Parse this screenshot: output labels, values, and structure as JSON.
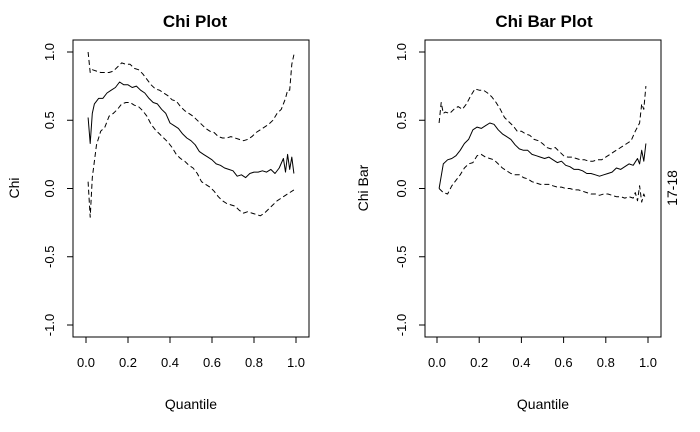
{
  "side_label": "17-18",
  "chart_data": [
    {
      "type": "line",
      "title": "Chi Plot",
      "xlabel": "Quantile",
      "ylabel": "Chi",
      "xlim": [
        0,
        1
      ],
      "ylim": [
        -1,
        1
      ],
      "xticks": [
        "0.0",
        "0.2",
        "0.4",
        "0.6",
        "0.8",
        "1.0"
      ],
      "yticks": [
        "-1.0",
        "-0.5",
        "0.0",
        "0.5",
        "1.0"
      ],
      "series": [
        {
          "style": "solid",
          "x": [
            0.01,
            0.02,
            0.03,
            0.04,
            0.06,
            0.08,
            0.1,
            0.12,
            0.14,
            0.16,
            0.18,
            0.2,
            0.22,
            0.24,
            0.26,
            0.28,
            0.3,
            0.32,
            0.34,
            0.36,
            0.38,
            0.4,
            0.42,
            0.44,
            0.46,
            0.48,
            0.5,
            0.52,
            0.54,
            0.56,
            0.58,
            0.6,
            0.62,
            0.64,
            0.66,
            0.68,
            0.7,
            0.72,
            0.74,
            0.76,
            0.78,
            0.8,
            0.82,
            0.84,
            0.86,
            0.88,
            0.9,
            0.92,
            0.94,
            0.95,
            0.96,
            0.97,
            0.98,
            0.99
          ],
          "y": [
            0.52,
            0.33,
            0.55,
            0.62,
            0.66,
            0.66,
            0.7,
            0.72,
            0.74,
            0.78,
            0.76,
            0.76,
            0.74,
            0.75,
            0.72,
            0.7,
            0.66,
            0.63,
            0.62,
            0.58,
            0.55,
            0.48,
            0.46,
            0.44,
            0.4,
            0.37,
            0.35,
            0.32,
            0.27,
            0.25,
            0.23,
            0.21,
            0.18,
            0.17,
            0.15,
            0.14,
            0.13,
            0.09,
            0.1,
            0.08,
            0.11,
            0.12,
            0.12,
            0.13,
            0.12,
            0.14,
            0.11,
            0.15,
            0.22,
            0.12,
            0.25,
            0.14,
            0.23,
            0.11
          ]
        },
        {
          "style": "dashed",
          "x": [
            0.01,
            0.02,
            0.03,
            0.05,
            0.07,
            0.09,
            0.11,
            0.13,
            0.15,
            0.17,
            0.19,
            0.21,
            0.23,
            0.25,
            0.27,
            0.29,
            0.31,
            0.33,
            0.35,
            0.37,
            0.39,
            0.41,
            0.43,
            0.45,
            0.47,
            0.49,
            0.51,
            0.53,
            0.55,
            0.57,
            0.59,
            0.61,
            0.63,
            0.65,
            0.67,
            0.69,
            0.71,
            0.73,
            0.75,
            0.77,
            0.79,
            0.81,
            0.83,
            0.85,
            0.87,
            0.89,
            0.91,
            0.93,
            0.95,
            0.96,
            0.97,
            0.98,
            0.99
          ],
          "y": [
            1.0,
            0.85,
            0.87,
            0.86,
            0.85,
            0.85,
            0.85,
            0.86,
            0.89,
            0.92,
            0.91,
            0.91,
            0.88,
            0.87,
            0.84,
            0.8,
            0.76,
            0.73,
            0.72,
            0.7,
            0.68,
            0.65,
            0.64,
            0.6,
            0.57,
            0.55,
            0.53,
            0.5,
            0.47,
            0.44,
            0.42,
            0.41,
            0.38,
            0.37,
            0.37,
            0.38,
            0.37,
            0.36,
            0.35,
            0.36,
            0.38,
            0.41,
            0.43,
            0.45,
            0.47,
            0.5,
            0.55,
            0.58,
            0.66,
            0.72,
            0.72,
            0.91,
            0.98
          ]
        },
        {
          "style": "dashed",
          "x": [
            0.01,
            0.02,
            0.03,
            0.05,
            0.07,
            0.09,
            0.11,
            0.13,
            0.15,
            0.17,
            0.19,
            0.21,
            0.23,
            0.25,
            0.27,
            0.29,
            0.31,
            0.33,
            0.35,
            0.37,
            0.39,
            0.41,
            0.43,
            0.45,
            0.47,
            0.49,
            0.51,
            0.53,
            0.55,
            0.57,
            0.59,
            0.61,
            0.63,
            0.65,
            0.67,
            0.69,
            0.71,
            0.73,
            0.75,
            0.77,
            0.79,
            0.81,
            0.83,
            0.85,
            0.87,
            0.89,
            0.91,
            0.93,
            0.95,
            0.97,
            0.99
          ],
          "y": [
            0.05,
            -0.21,
            0.08,
            0.32,
            0.42,
            0.45,
            0.53,
            0.55,
            0.58,
            0.62,
            0.63,
            0.63,
            0.61,
            0.6,
            0.57,
            0.53,
            0.47,
            0.43,
            0.4,
            0.37,
            0.34,
            0.3,
            0.25,
            0.22,
            0.2,
            0.17,
            0.15,
            0.11,
            0.05,
            0.03,
            0.01,
            -0.02,
            -0.06,
            -0.09,
            -0.11,
            -0.12,
            -0.13,
            -0.16,
            -0.18,
            -0.17,
            -0.18,
            -0.19,
            -0.2,
            -0.18,
            -0.15,
            -0.12,
            -0.09,
            -0.07,
            -0.05,
            -0.03,
            -0.01
          ]
        }
      ]
    },
    {
      "type": "line",
      "title": "Chi Bar Plot",
      "xlabel": "Quantile",
      "ylabel": "Chi Bar",
      "xlim": [
        0,
        1
      ],
      "ylim": [
        -1,
        1
      ],
      "xticks": [
        "0.0",
        "0.2",
        "0.4",
        "0.6",
        "0.8",
        "1.0"
      ],
      "yticks": [
        "-1.0",
        "-0.5",
        "0.0",
        "0.5",
        "1.0"
      ],
      "series": [
        {
          "style": "solid",
          "x": [
            0.01,
            0.03,
            0.05,
            0.07,
            0.09,
            0.11,
            0.13,
            0.15,
            0.17,
            0.19,
            0.21,
            0.23,
            0.25,
            0.27,
            0.29,
            0.31,
            0.33,
            0.35,
            0.37,
            0.39,
            0.41,
            0.43,
            0.45,
            0.47,
            0.49,
            0.51,
            0.53,
            0.55,
            0.57,
            0.59,
            0.61,
            0.63,
            0.65,
            0.67,
            0.69,
            0.71,
            0.73,
            0.75,
            0.77,
            0.79,
            0.81,
            0.83,
            0.85,
            0.87,
            0.89,
            0.91,
            0.93,
            0.95,
            0.96,
            0.97,
            0.98,
            0.99
          ],
          "y": [
            0.0,
            0.18,
            0.21,
            0.22,
            0.24,
            0.28,
            0.33,
            0.36,
            0.43,
            0.45,
            0.44,
            0.46,
            0.48,
            0.47,
            0.43,
            0.4,
            0.38,
            0.36,
            0.32,
            0.29,
            0.28,
            0.28,
            0.25,
            0.24,
            0.23,
            0.22,
            0.23,
            0.21,
            0.19,
            0.2,
            0.17,
            0.16,
            0.14,
            0.14,
            0.13,
            0.11,
            0.11,
            0.1,
            0.09,
            0.1,
            0.11,
            0.12,
            0.15,
            0.14,
            0.16,
            0.18,
            0.17,
            0.22,
            0.18,
            0.28,
            0.2,
            0.33
          ]
        },
        {
          "style": "dashed",
          "x": [
            0.01,
            0.02,
            0.03,
            0.04,
            0.06,
            0.08,
            0.1,
            0.12,
            0.14,
            0.16,
            0.18,
            0.2,
            0.22,
            0.24,
            0.26,
            0.28,
            0.3,
            0.32,
            0.34,
            0.36,
            0.38,
            0.4,
            0.42,
            0.44,
            0.46,
            0.48,
            0.5,
            0.52,
            0.54,
            0.56,
            0.58,
            0.6,
            0.62,
            0.64,
            0.66,
            0.68,
            0.7,
            0.72,
            0.74,
            0.76,
            0.78,
            0.8,
            0.82,
            0.84,
            0.86,
            0.88,
            0.9,
            0.92,
            0.94,
            0.96,
            0.97,
            0.98,
            0.99
          ],
          "y": [
            0.48,
            0.63,
            0.55,
            0.56,
            0.55,
            0.58,
            0.6,
            0.58,
            0.62,
            0.68,
            0.73,
            0.72,
            0.72,
            0.7,
            0.67,
            0.63,
            0.58,
            0.52,
            0.49,
            0.46,
            0.42,
            0.42,
            0.4,
            0.39,
            0.36,
            0.35,
            0.33,
            0.3,
            0.29,
            0.3,
            0.27,
            0.24,
            0.23,
            0.23,
            0.22,
            0.21,
            0.21,
            0.2,
            0.2,
            0.21,
            0.21,
            0.23,
            0.25,
            0.27,
            0.29,
            0.31,
            0.33,
            0.35,
            0.42,
            0.48,
            0.62,
            0.58,
            0.75
          ]
        },
        {
          "style": "dashed",
          "x": [
            0.01,
            0.03,
            0.05,
            0.07,
            0.09,
            0.11,
            0.13,
            0.15,
            0.17,
            0.19,
            0.21,
            0.23,
            0.25,
            0.27,
            0.29,
            0.31,
            0.33,
            0.35,
            0.37,
            0.39,
            0.41,
            0.43,
            0.45,
            0.47,
            0.49,
            0.51,
            0.53,
            0.55,
            0.57,
            0.59,
            0.61,
            0.63,
            0.65,
            0.67,
            0.69,
            0.71,
            0.73,
            0.75,
            0.77,
            0.79,
            0.81,
            0.83,
            0.85,
            0.87,
            0.89,
            0.91,
            0.93,
            0.94,
            0.95,
            0.96,
            0.97,
            0.98,
            0.99
          ],
          "y": [
            0.0,
            -0.03,
            -0.04,
            0.02,
            0.06,
            0.1,
            0.15,
            0.18,
            0.19,
            0.24,
            0.25,
            0.23,
            0.22,
            0.21,
            0.18,
            0.15,
            0.13,
            0.11,
            0.1,
            0.1,
            0.08,
            0.07,
            0.05,
            0.04,
            0.03,
            0.03,
            0.03,
            0.02,
            0.01,
            0.01,
            0.0,
            0.0,
            -0.01,
            -0.01,
            -0.02,
            -0.03,
            -0.04,
            -0.04,
            -0.05,
            -0.04,
            -0.04,
            -0.05,
            -0.06,
            -0.06,
            -0.07,
            -0.06,
            -0.07,
            -0.03,
            -0.09,
            0.02,
            -0.1,
            -0.04,
            -0.08
          ]
        }
      ]
    }
  ]
}
